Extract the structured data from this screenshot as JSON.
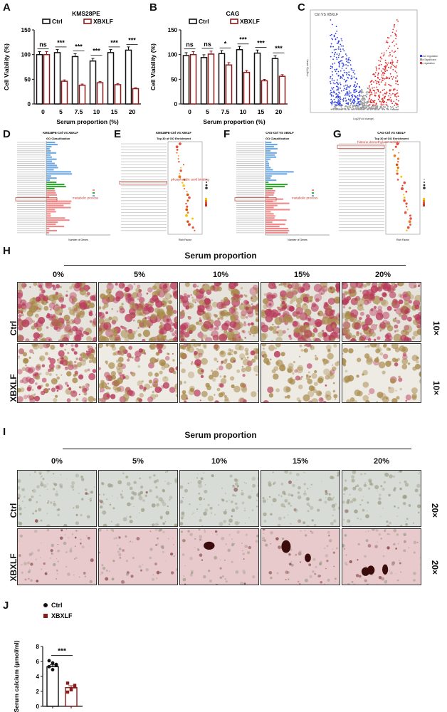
{
  "panel_letters": {
    "A": "A",
    "B": "B",
    "C": "C",
    "D": "D",
    "E": "E",
    "F": "F",
    "G": "G",
    "H": "H",
    "I": "I",
    "J": "J"
  },
  "colors": {
    "ctrl": "#111111",
    "xbxlf": "#8b1a1a",
    "volcano_down": "#2b3de0",
    "volcano_up": "#e02b2b",
    "volcano_ns": "#9a9a9a",
    "go_bp": "#f08a8a",
    "go_cc": "#3aa63a",
    "go_mf": "#6fa8e0",
    "stain_red": "#b83a5a",
    "stain_brown": "#a88a4a",
    "cell_bg_h": "#e6e2dc",
    "cell_bg_i_ctrl": "#d8dcd6",
    "cell_bg_i_x": "#e8c9cc"
  },
  "chart_data": [
    {
      "type": "bar",
      "title": "KMS28PE",
      "xlabel": "Serum proportion (%)",
      "ylabel": "Cell Viability (%)",
      "ylim": [
        0,
        150
      ],
      "yticks": [
        "0",
        "50",
        "100",
        "150"
      ],
      "categories": [
        "0",
        "5",
        "7.5",
        "10",
        "15",
        "20"
      ],
      "series": [
        {
          "name": "Ctrl",
          "values": [
            100,
            104,
            96,
            87,
            104,
            109
          ]
        },
        {
          "name": "XBXLF",
          "values": [
            100,
            46,
            38,
            43,
            39,
            31
          ]
        }
      ],
      "significance": [
        "ns",
        "***",
        "***",
        "***",
        "***",
        "***"
      ],
      "legend": "top"
    },
    {
      "type": "bar",
      "title": "CAG",
      "xlabel": "Serum proportion (%)",
      "ylabel": "Cell Viability (%)",
      "ylim": [
        0,
        150
      ],
      "yticks": [
        "0",
        "50",
        "100",
        "150"
      ],
      "categories": [
        "0",
        "5",
        "7.5",
        "10",
        "15",
        "20"
      ],
      "series": [
        {
          "name": "Ctrl",
          "values": [
            98,
            94,
            102,
            110,
            103,
            92
          ]
        },
        {
          "name": "XBXLF",
          "values": [
            100,
            101,
            79,
            64,
            47,
            56
          ]
        }
      ],
      "significance": [
        "ns",
        "ns",
        "*",
        "***",
        "***",
        "***"
      ],
      "legend": "top"
    },
    {
      "type": "bar",
      "xlabel": "",
      "ylabel": "Serum calcium (μmol/ml)",
      "ylim": [
        0,
        8
      ],
      "yticks": [
        "0",
        "2",
        "4",
        "6",
        "8"
      ],
      "categories": [
        "Ctrl",
        "XBXLF"
      ],
      "values": [
        5.3,
        2.5
      ],
      "points": {
        "Ctrl": [
          6.1,
          5.8,
          5.5,
          5.3,
          4.9,
          5.6
        ],
        "XBXLF": [
          3.1,
          2.3,
          2.8,
          1.9,
          2.2,
          2.6
        ]
      },
      "significance": "***",
      "legend": "top-left"
    }
  ],
  "volcano": {
    "title": "Ctrl VS XBXLF",
    "legend": [
      "Down regulation",
      "Not Significant",
      "Up regulation"
    ],
    "xlabel": "Log2(Fold change)",
    "ylabel": "-Log10(p value)"
  },
  "go_panels": {
    "D": {
      "title": "KMS28PE-Ctrl VS XBXLF",
      "subtitle": "GO Classification",
      "xlabel": "Number of Genes",
      "highlight": "metabolic process"
    },
    "E": {
      "title": "KMS28PE-Ctrl VS XBXLF",
      "subtitle": "Top 30 of GO Enrichment",
      "xlabel": "Rich Factor",
      "highlight": "phosphatidic acid binding"
    },
    "F": {
      "title": "CAG-Ctrl VS XBXLF",
      "subtitle": "GO Classification",
      "xlabel": "Number of Genes",
      "highlight": "metabolic process"
    },
    "G": {
      "title": "CAG-Ctrl VS XBXLF",
      "subtitle": "Top 30 of GO Enrichment",
      "xlabel": "Rich Factor",
      "highlight": "histone demethylase activity"
    }
  },
  "staining_H": {
    "title": "Serum proportion",
    "columns": [
      "0%",
      "5%",
      "10%",
      "15%",
      "20%"
    ],
    "rows": [
      "Ctrl",
      "XBXLF"
    ],
    "magnification": "10×"
  },
  "staining_I": {
    "title": "Serum proportion",
    "columns": [
      "0%",
      "5%",
      "10%",
      "15%",
      "20%"
    ],
    "rows": [
      "Ctrl",
      "XBXLF"
    ],
    "magnification": "20×"
  }
}
